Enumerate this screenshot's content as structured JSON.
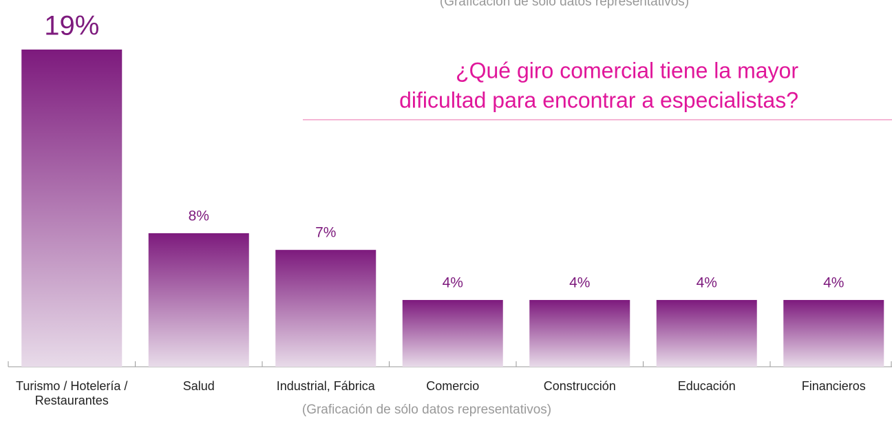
{
  "chart_data": {
    "type": "bar",
    "top_note": "(Graficación de sólo datos representativos)",
    "title": [
      "¿Qué giro comercial tiene la mayor",
      "dificultad para encontrar a especialistas?"
    ],
    "categories": [
      "Turismo / Hotelería / Restaurantes",
      "Salud",
      "Industrial, Fábrica",
      "Comercio",
      "Construcción",
      "Educación",
      "Financieros"
    ],
    "values": [
      19,
      8,
      7,
      4,
      4,
      4,
      4
    ],
    "value_labels": [
      "19%",
      "8%",
      "7%",
      "4%",
      "4%",
      "4%",
      "4%"
    ],
    "color": "#7d1a7d",
    "note": "(Graficación de sólo datos representativos)"
  }
}
